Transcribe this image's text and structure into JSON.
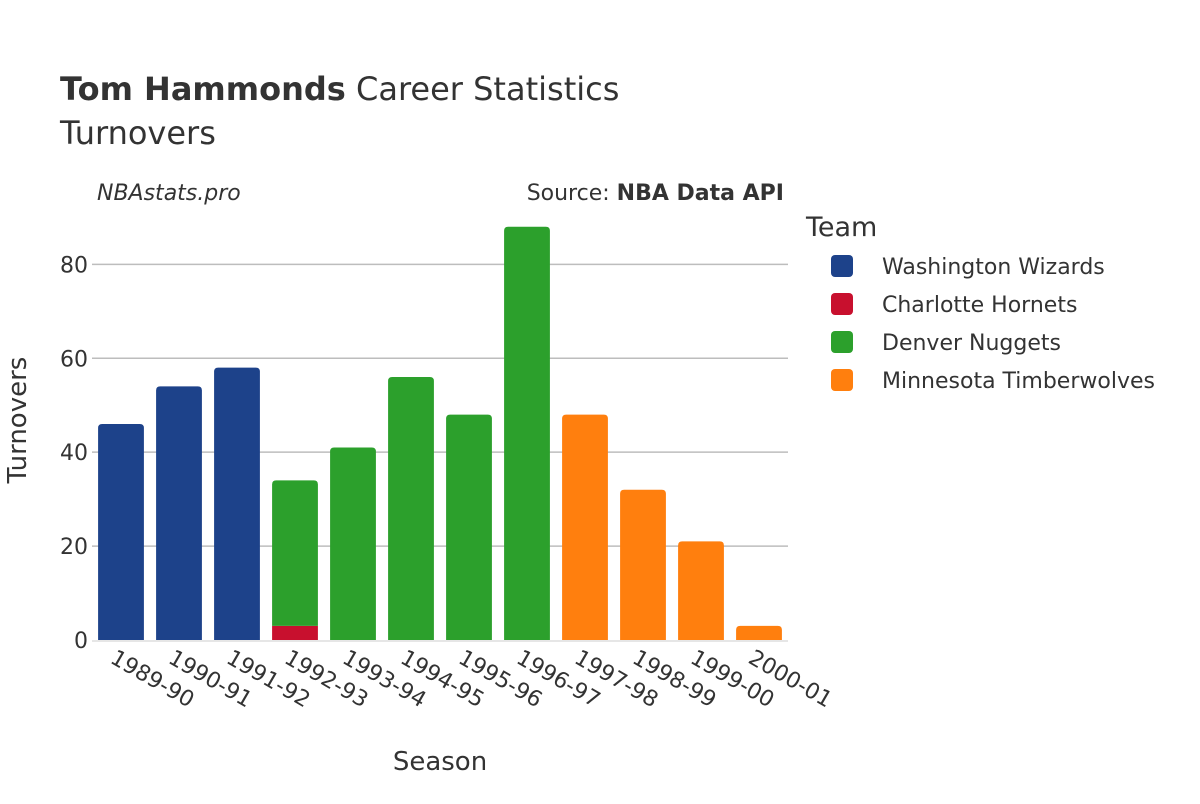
{
  "chart_data": {
    "type": "bar",
    "stacked": true,
    "title_bold": "Tom Hammonds",
    "title_rest": " Career Statistics",
    "subtitle": "Turnovers",
    "watermark": "NBAstats.pro",
    "source_prefix": "Source: ",
    "source_name": "NBA Data API",
    "xlabel": "Season",
    "ylabel": "Turnovers",
    "ylim": [
      0,
      92
    ],
    "yticks": [
      0,
      20,
      40,
      60,
      80
    ],
    "grid": true,
    "legend_title": "Team",
    "legend_position": "right",
    "categories": [
      "1989-90",
      "1990-91",
      "1991-92",
      "1992-93",
      "1993-94",
      "1994-95",
      "1995-96",
      "1996-97",
      "1997-98",
      "1998-99",
      "1999-00",
      "2000-01"
    ],
    "series": [
      {
        "name": "Washington Wizards",
        "color": "#1d428a",
        "values": [
          46,
          54,
          58,
          0,
          0,
          0,
          0,
          0,
          0,
          0,
          0,
          0
        ]
      },
      {
        "name": "Charlotte Hornets",
        "color": "#c8102e",
        "values": [
          0,
          0,
          0,
          3,
          0,
          0,
          0,
          0,
          0,
          0,
          0,
          0
        ]
      },
      {
        "name": "Denver Nuggets",
        "color": "#2ca02c",
        "values": [
          0,
          0,
          0,
          31,
          41,
          56,
          48,
          88,
          0,
          0,
          0,
          0
        ]
      },
      {
        "name": "Minnesota Timberwolves",
        "color": "#ff7f0e",
        "values": [
          0,
          0,
          0,
          0,
          0,
          0,
          0,
          0,
          48,
          32,
          21,
          3
        ]
      }
    ]
  }
}
